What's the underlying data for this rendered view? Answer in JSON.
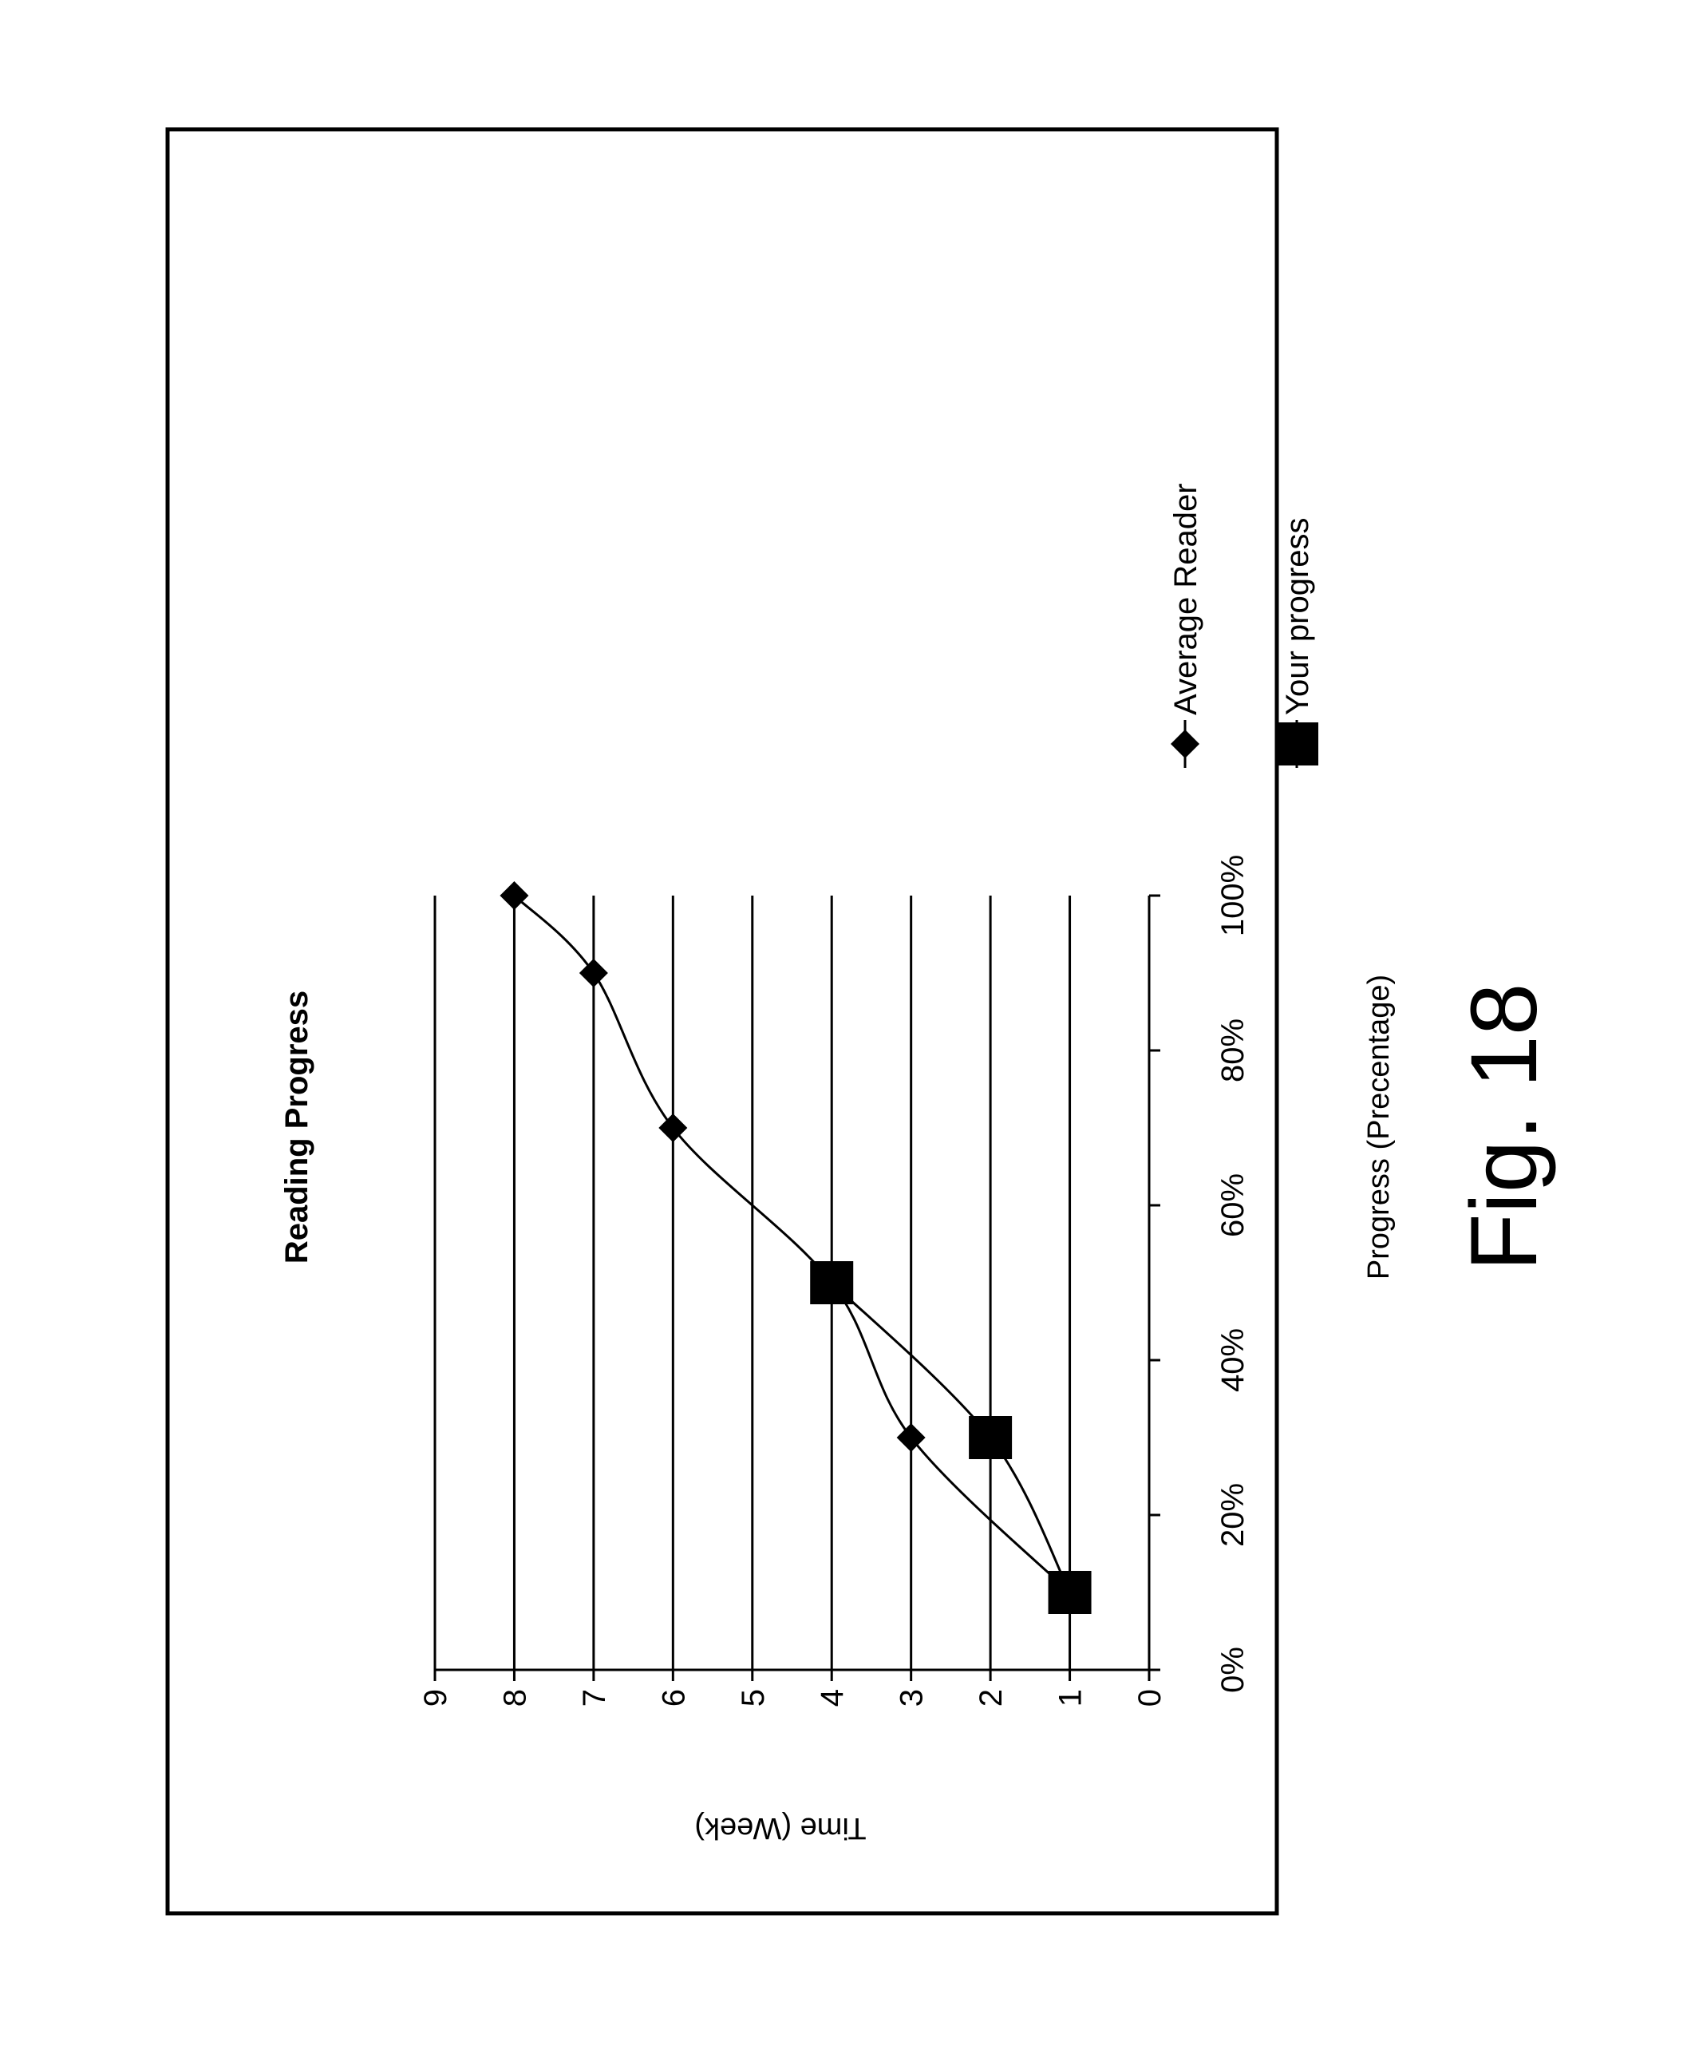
{
  "chart_data": {
    "type": "line",
    "title": "Reading Progress",
    "xlabel": "Progress (Precentage)",
    "ylabel": "Time (Week)",
    "xlim": [
      0,
      100
    ],
    "ylim": [
      0,
      9
    ],
    "x_ticks": [
      "0%",
      "20%",
      "40%",
      "60%",
      "80%",
      "100%"
    ],
    "y_ticks": [
      "0",
      "1",
      "2",
      "3",
      "4",
      "5",
      "6",
      "7",
      "8",
      "9"
    ],
    "grid": "horizontal",
    "legend_position": "right",
    "series": [
      {
        "name": "Average Reader",
        "marker": "diamond",
        "x": [
          10,
          30,
          50,
          70,
          90,
          100
        ],
        "y": [
          1,
          3,
          4,
          6,
          7,
          8
        ]
      },
      {
        "name": "Your progress",
        "marker": "square",
        "x": [
          10,
          30,
          50
        ],
        "y": [
          1,
          2,
          4
        ]
      }
    ]
  },
  "caption": "Fig. 18",
  "colors": {
    "ink": "#000000",
    "background": "#ffffff"
  }
}
